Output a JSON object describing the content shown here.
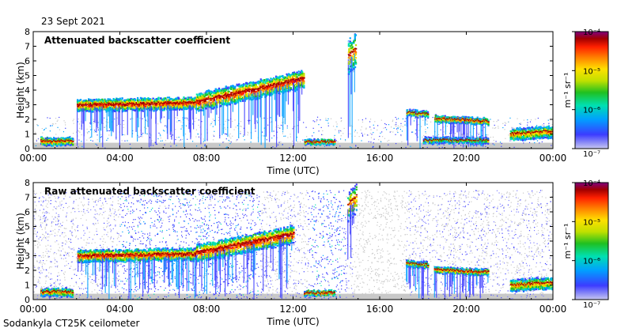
{
  "header": {
    "date": "23 Sept 2021"
  },
  "footer": {
    "instrument": "Sodankyla CT25K ceilometer"
  },
  "colors": {
    "background_echo": "#c8c8c8",
    "colormap": [
      "#c8c8f0",
      "#3c3cff",
      "#00a0ff",
      "#00e0b0",
      "#20c020",
      "#c0e000",
      "#ffe000",
      "#ff8000",
      "#ff2000",
      "#a00000",
      "#800080"
    ]
  },
  "chart_data": [
    {
      "type": "heatmap",
      "title": "Attenuated backscatter coefficient",
      "xlabel": "Time (UTC)",
      "ylabel": "Height (km)",
      "xlim": [
        0,
        24
      ],
      "ylim": [
        0,
        8
      ],
      "x_tick_labels": [
        "00:00",
        "04:00",
        "08:00",
        "12:00",
        "16:00",
        "20:00",
        "00:00"
      ],
      "y_tick_labels": [
        "0",
        "1",
        "2",
        "3",
        "4",
        "5",
        "6",
        "7",
        "8"
      ],
      "colorbar": {
        "label": "m⁻¹ sr⁻¹",
        "ticks": [
          "10⁻⁴",
          "10⁻⁵",
          "10⁻⁶",
          "10⁻⁷"
        ],
        "scale": "log",
        "range": [
          1e-07,
          0.0001
        ]
      },
      "noise_level": "low",
      "cloud_layers": [
        {
          "t0": 0.3,
          "t1": 1.8,
          "h": 0.55,
          "hEnd": 0.55,
          "thick": 0.25,
          "intensity": 0.75
        },
        {
          "t0": 2.0,
          "t1": 7.5,
          "h": 3.0,
          "hEnd": 3.15,
          "thick": 0.4,
          "intensity": 0.85
        },
        {
          "t0": 7.5,
          "t1": 12.5,
          "h": 3.2,
          "hEnd": 4.8,
          "thick": 0.6,
          "intensity": 0.85
        },
        {
          "t0": 12.5,
          "t1": 13.9,
          "h": 0.5,
          "hEnd": 0.5,
          "thick": 0.15,
          "intensity": 0.8
        },
        {
          "t0": 14.5,
          "t1": 14.9,
          "h": 6.2,
          "hEnd": 6.8,
          "thick": 1.2,
          "intensity": 0.7
        },
        {
          "t0": 17.2,
          "t1": 18.2,
          "h": 2.5,
          "hEnd": 2.4,
          "thick": 0.2,
          "intensity": 0.6
        },
        {
          "t0": 18.5,
          "t1": 21.0,
          "h": 2.1,
          "hEnd": 1.9,
          "thick": 0.2,
          "intensity": 0.75
        },
        {
          "t0": 18.0,
          "t1": 21.0,
          "h": 0.6,
          "hEnd": 0.6,
          "thick": 0.2,
          "intensity": 0.5
        },
        {
          "t0": 22.0,
          "t1": 24.0,
          "h": 1.0,
          "hEnd": 1.2,
          "thick": 0.4,
          "intensity": 0.7
        }
      ]
    },
    {
      "type": "heatmap",
      "title": "Raw attenuated backscatter coefficient",
      "xlabel": "Time (UTC)",
      "ylabel": "Height (km)",
      "xlim": [
        0,
        24
      ],
      "ylim": [
        0,
        8
      ],
      "x_tick_labels": [
        "00:00",
        "04:00",
        "08:00",
        "12:00",
        "16:00",
        "20:00",
        "00:00"
      ],
      "y_tick_labels": [
        "0",
        "1",
        "2",
        "3",
        "4",
        "5",
        "6",
        "7",
        "8"
      ],
      "colorbar": {
        "label": "m⁻¹ sr⁻¹",
        "ticks": [
          "10⁻⁴",
          "10⁻⁵",
          "10⁻⁶",
          "10⁻⁷"
        ],
        "scale": "log",
        "range": [
          1e-07,
          0.0001
        ]
      },
      "noise_level": "high",
      "cloud_layers": [
        {
          "t0": 0.3,
          "t1": 1.8,
          "h": 0.55,
          "hEnd": 0.55,
          "thick": 0.25,
          "intensity": 0.75
        },
        {
          "t0": 2.0,
          "t1": 7.5,
          "h": 3.0,
          "hEnd": 3.15,
          "thick": 0.4,
          "intensity": 0.85
        },
        {
          "t0": 7.5,
          "t1": 12.0,
          "h": 3.2,
          "hEnd": 4.5,
          "thick": 0.6,
          "intensity": 0.85
        },
        {
          "t0": 12.5,
          "t1": 13.9,
          "h": 0.5,
          "hEnd": 0.5,
          "thick": 0.15,
          "intensity": 0.8
        },
        {
          "t0": 14.5,
          "t1": 14.9,
          "h": 6.4,
          "hEnd": 7.0,
          "thick": 1.0,
          "intensity": 0.7
        },
        {
          "t0": 17.2,
          "t1": 18.2,
          "h": 2.5,
          "hEnd": 2.4,
          "thick": 0.2,
          "intensity": 0.6
        },
        {
          "t0": 18.5,
          "t1": 21.0,
          "h": 2.1,
          "hEnd": 1.9,
          "thick": 0.2,
          "intensity": 0.75
        },
        {
          "t0": 22.0,
          "t1": 24.0,
          "h": 1.0,
          "hEnd": 1.2,
          "thick": 0.4,
          "intensity": 0.7
        }
      ]
    }
  ]
}
